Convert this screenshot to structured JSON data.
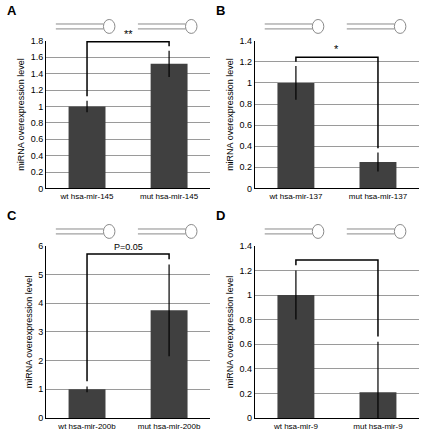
{
  "chart_data": [
    {
      "type": "bar",
      "panel": "A",
      "ylabel": "miRNA overexpression level",
      "categories": [
        "wt hsa-mir-145",
        "mut hsa-mir-145"
      ],
      "values": [
        1,
        1.52
      ],
      "errors": [
        0.07,
        0.16
      ],
      "color": "#404040",
      "ylim": [
        0,
        1.8
      ],
      "yticks": [
        0,
        0.2,
        0.4,
        0.6,
        0.8,
        1,
        1.2,
        1.4,
        1.6,
        1.8
      ],
      "grid": true,
      "annotation": "**"
    },
    {
      "type": "bar",
      "panel": "B",
      "ylabel": "miRNA overexpression level",
      "categories": [
        "wt hsa-mir-137",
        "mut hsa-mir-137"
      ],
      "values": [
        1,
        0.25
      ],
      "errors": [
        0.16,
        0.09
      ],
      "color": "#404040",
      "ylim": [
        0,
        1.4
      ],
      "yticks": [
        0,
        0.2,
        0.4,
        0.6,
        0.8,
        1,
        1.2,
        1.4
      ],
      "grid": true,
      "annotation": "*"
    },
    {
      "type": "bar",
      "panel": "C",
      "ylabel": "miRNA overexpression level",
      "categories": [
        "wt hsa-mir-200b",
        "mut hsa-mir-200b"
      ],
      "values": [
        1,
        3.75
      ],
      "errors": [
        0.1,
        1.6
      ],
      "color": "#404040",
      "ylim": [
        0,
        6
      ],
      "yticks": [
        0,
        1,
        2,
        3,
        4,
        5,
        6
      ],
      "grid": true,
      "annotation": "P=0.05"
    },
    {
      "type": "bar",
      "panel": "D",
      "ylabel": "miRNA overexpression level",
      "categories": [
        "wt hsa-mir-9",
        "mut hsa-mir-9"
      ],
      "values": [
        1,
        0.21
      ],
      "errors": [
        0.2,
        0.41
      ],
      "color": "#404040",
      "ylim": [
        0,
        1.4
      ],
      "yticks": [
        0,
        0.2,
        0.4,
        0.6,
        0.8,
        1,
        1.2,
        1.4
      ],
      "grid": true
    }
  ]
}
